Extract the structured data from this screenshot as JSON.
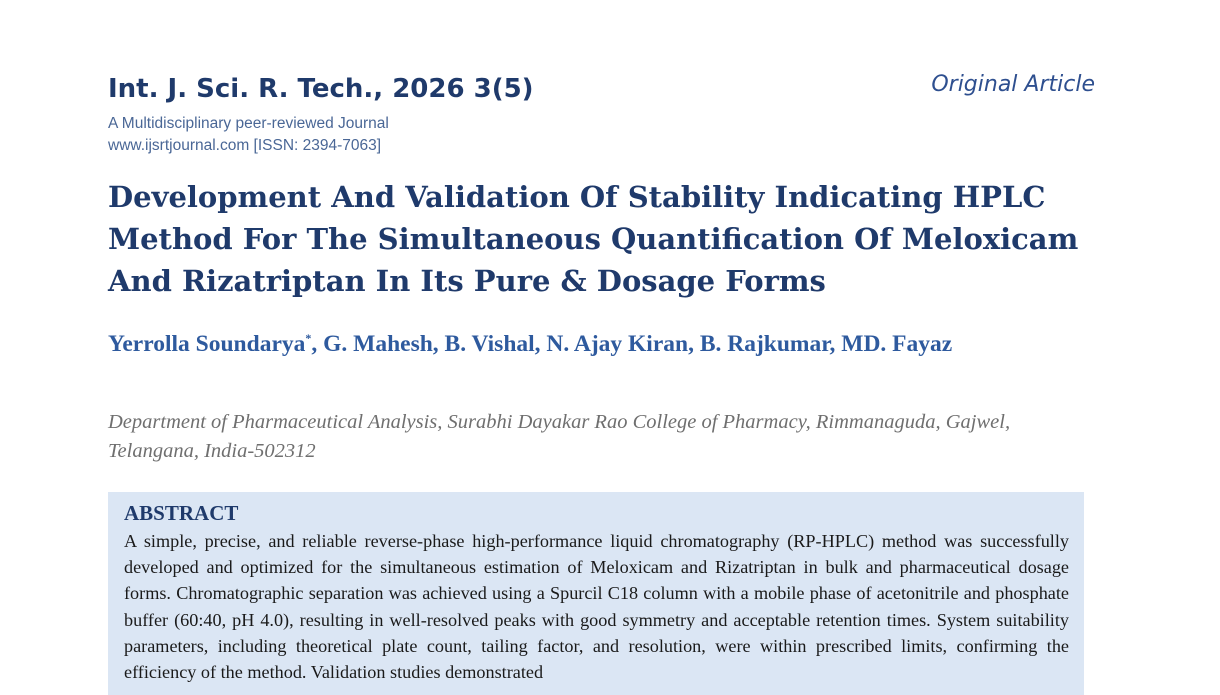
{
  "header": {
    "journal_title": "Int. J. Sci. R. Tech., 2026 3(5)",
    "journal_subtitle": "A Multidisciplinary peer-reviewed Journal",
    "journal_website": "www.ijsrtjournal.com [ISSN: 2394-7063]",
    "article_type": "Original Article"
  },
  "article": {
    "title": "Development And Validation Of Stability Indicating HPLC Method For The Simultaneous Quantification Of Meloxicam And Rizatriptan In Its Pure & Dosage Forms",
    "first_author": "Yerrolla Soundarya",
    "corresponding_mark": "*",
    "other_authors": ", G. Mahesh, B. Vishal, N. Ajay Kiran, B. Rajkumar, MD. Fayaz",
    "affiliation": "Department of Pharmaceutical Analysis, Surabhi Dayakar Rao College of Pharmacy, Rimmanaguda, Gajwel, Telangana, India-502312"
  },
  "abstract": {
    "heading": "ABSTRACT",
    "text": "A simple, precise, and reliable reverse-phase high-performance liquid chromatography (RP-HPLC) method was successfully developed and optimized for the simultaneous estimation of Meloxicam and Rizatriptan in bulk and pharmaceutical dosage forms. Chromatographic separation was achieved using a Spurcil C18 column with a mobile phase of acetonitrile and phosphate buffer (60:40, pH 4.0), resulting in well-resolved peaks with good symmetry and acceptable retention times. System suitability parameters, including theoretical plate count, tailing factor, and resolution, were within prescribed limits, confirming the efficiency of the method. Validation studies demonstrated"
  },
  "colors": {
    "heading_navy": "#1f3a6b",
    "author_blue": "#2e5a9e",
    "abstract_background": "#dbe6f4",
    "affiliation_gray": "#6f6f6f"
  }
}
